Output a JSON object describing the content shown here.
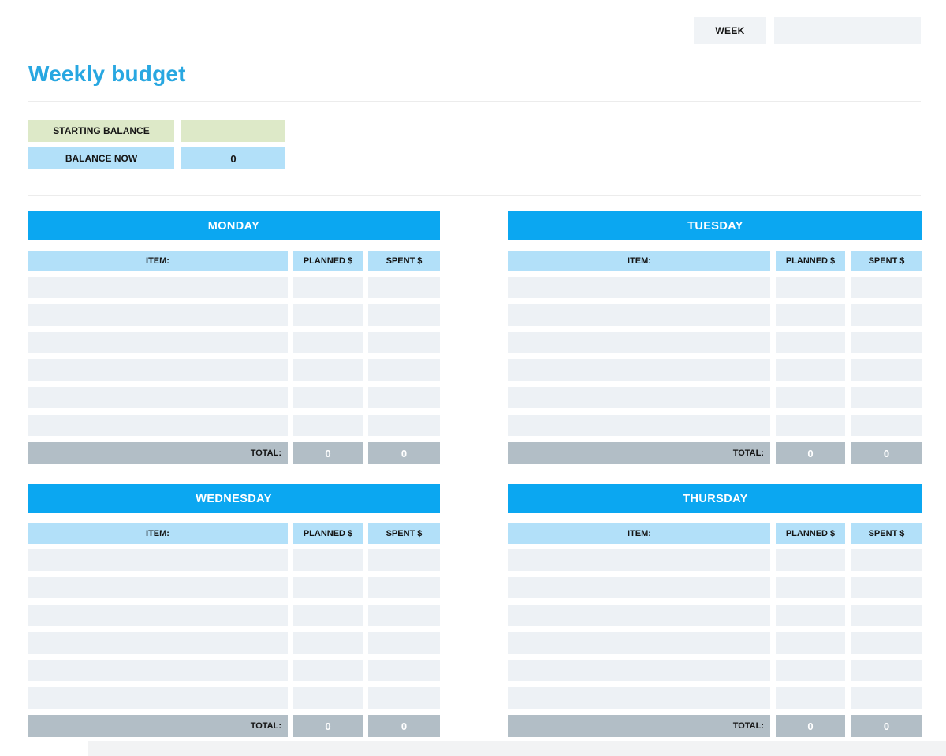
{
  "title": "Weekly budget",
  "week": {
    "label": "WEEK",
    "value": ""
  },
  "balance": {
    "starting_label": "STARTING BALANCE",
    "starting_value": "",
    "now_label": "BALANCE NOW",
    "now_value": "0"
  },
  "columns": {
    "item": "ITEM:",
    "planned": "PLANNED $",
    "spent": "SPENT $"
  },
  "total_label": "TOTAL:",
  "days": [
    {
      "name": "MONDAY",
      "rows": [
        {
          "item": "",
          "planned": "",
          "spent": ""
        },
        {
          "item": "",
          "planned": "",
          "spent": ""
        },
        {
          "item": "",
          "planned": "",
          "spent": ""
        },
        {
          "item": "",
          "planned": "",
          "spent": ""
        },
        {
          "item": "",
          "planned": "",
          "spent": ""
        },
        {
          "item": "",
          "planned": "",
          "spent": ""
        }
      ],
      "total_planned": "0",
      "total_spent": "0"
    },
    {
      "name": "TUESDAY",
      "rows": [
        {
          "item": "",
          "planned": "",
          "spent": ""
        },
        {
          "item": "",
          "planned": "",
          "spent": ""
        },
        {
          "item": "",
          "planned": "",
          "spent": ""
        },
        {
          "item": "",
          "planned": "",
          "spent": ""
        },
        {
          "item": "",
          "planned": "",
          "spent": ""
        },
        {
          "item": "",
          "planned": "",
          "spent": ""
        }
      ],
      "total_planned": "0",
      "total_spent": "0"
    },
    {
      "name": "WEDNESDAY",
      "rows": [
        {
          "item": "",
          "planned": "",
          "spent": ""
        },
        {
          "item": "",
          "planned": "",
          "spent": ""
        },
        {
          "item": "",
          "planned": "",
          "spent": ""
        },
        {
          "item": "",
          "planned": "",
          "spent": ""
        },
        {
          "item": "",
          "planned": "",
          "spent": ""
        },
        {
          "item": "",
          "planned": "",
          "spent": ""
        }
      ],
      "total_planned": "0",
      "total_spent": "0"
    },
    {
      "name": "THURSDAY",
      "rows": [
        {
          "item": "",
          "planned": "",
          "spent": ""
        },
        {
          "item": "",
          "planned": "",
          "spent": ""
        },
        {
          "item": "",
          "planned": "",
          "spent": ""
        },
        {
          "item": "",
          "planned": "",
          "spent": ""
        },
        {
          "item": "",
          "planned": "",
          "spent": ""
        },
        {
          "item": "",
          "planned": "",
          "spent": ""
        }
      ],
      "total_planned": "0",
      "total_spent": "0"
    }
  ],
  "colors": {
    "accent_blue": "#0ba7f1",
    "title_blue": "#28a7e1",
    "light_blue": "#b2e0f9",
    "green": "#dde9c8",
    "row_gray": "#edf1f5",
    "total_gray": "#b2bec6",
    "field_gray": "#f0f3f6"
  }
}
